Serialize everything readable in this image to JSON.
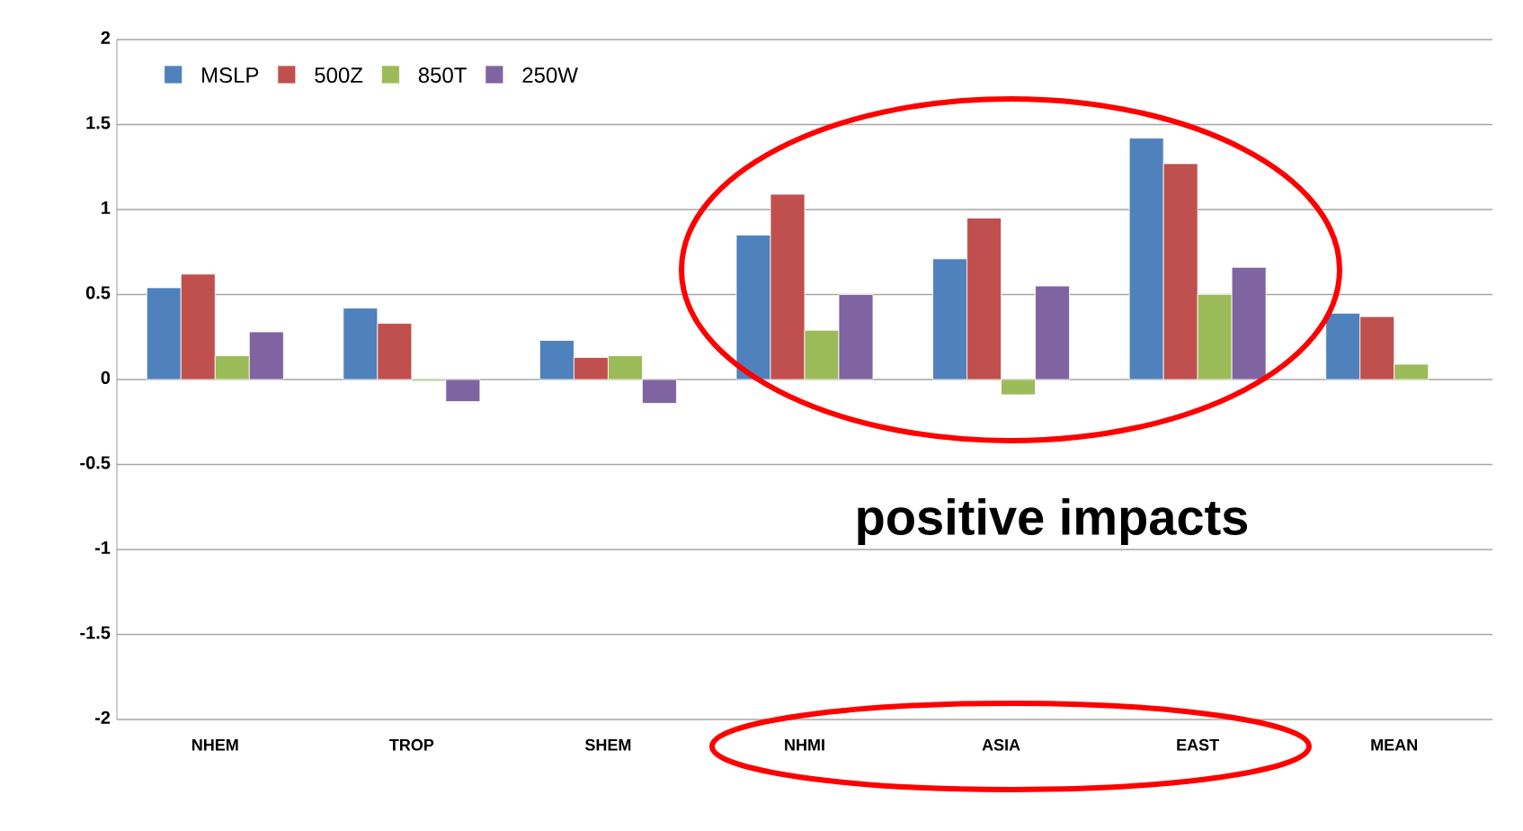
{
  "chart_data": {
    "type": "bar",
    "categories": [
      "NHEM",
      "TROP",
      "SHEM",
      "NHMI",
      "ASIA",
      "EAST",
      "MEAN"
    ],
    "series": [
      {
        "name": "MSLP",
        "color": "#4f81bd",
        "values": [
          0.54,
          0.42,
          0.23,
          0.85,
          0.71,
          1.42,
          0.39
        ]
      },
      {
        "name": "500Z",
        "color": "#c0504d",
        "values": [
          0.62,
          0.33,
          0.13,
          1.09,
          0.95,
          1.27,
          0.37
        ]
      },
      {
        "name": "850T",
        "color": "#9bbb59",
        "values": [
          0.14,
          -0.01,
          0.14,
          0.29,
          -0.09,
          0.5,
          0.09
        ]
      },
      {
        "name": "250W",
        "color": "#8064a2",
        "values": [
          0.28,
          -0.13,
          -0.14,
          0.5,
          0.55,
          0.66,
          null
        ]
      }
    ],
    "ylim": [
      -2,
      2
    ],
    "yticks": [
      -2,
      -1.5,
      -1,
      -0.5,
      0,
      0.5,
      1,
      1.5,
      2
    ],
    "grid": "y",
    "legend": "top left",
    "annotations": [
      "positive impacts"
    ]
  }
}
